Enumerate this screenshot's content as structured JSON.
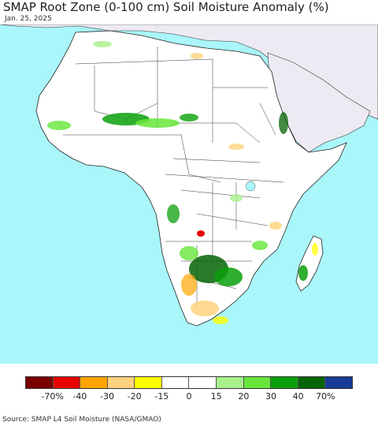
{
  "header": {
    "title": "SMAP Root Zone (0-100 cm) Soil Moisture Anomaly (%)",
    "date": "Jan. 25, 2025"
  },
  "colors": {
    "ocean": "#a9f6fb",
    "land_neutral": "#ffffff",
    "outside_region": "#eeeaf3",
    "border": "#222222"
  },
  "legend": {
    "colors": [
      "#7a0000",
      "#e60000",
      "#ffa500",
      "#ffd27f",
      "#ffff00",
      "#ffffff",
      "#ffffff",
      "#a8f08c",
      "#66e63a",
      "#0aa00a",
      "#056405",
      "#173a96"
    ],
    "labels": [
      "-70%",
      "-40",
      "-30",
      "-20",
      "-15",
      "0",
      "15",
      "20",
      "30",
      "40",
      "70%"
    ]
  },
  "footer": {
    "source": "Source: SMAP L4 Soil Moisture (NASA/GMAO)"
  }
}
